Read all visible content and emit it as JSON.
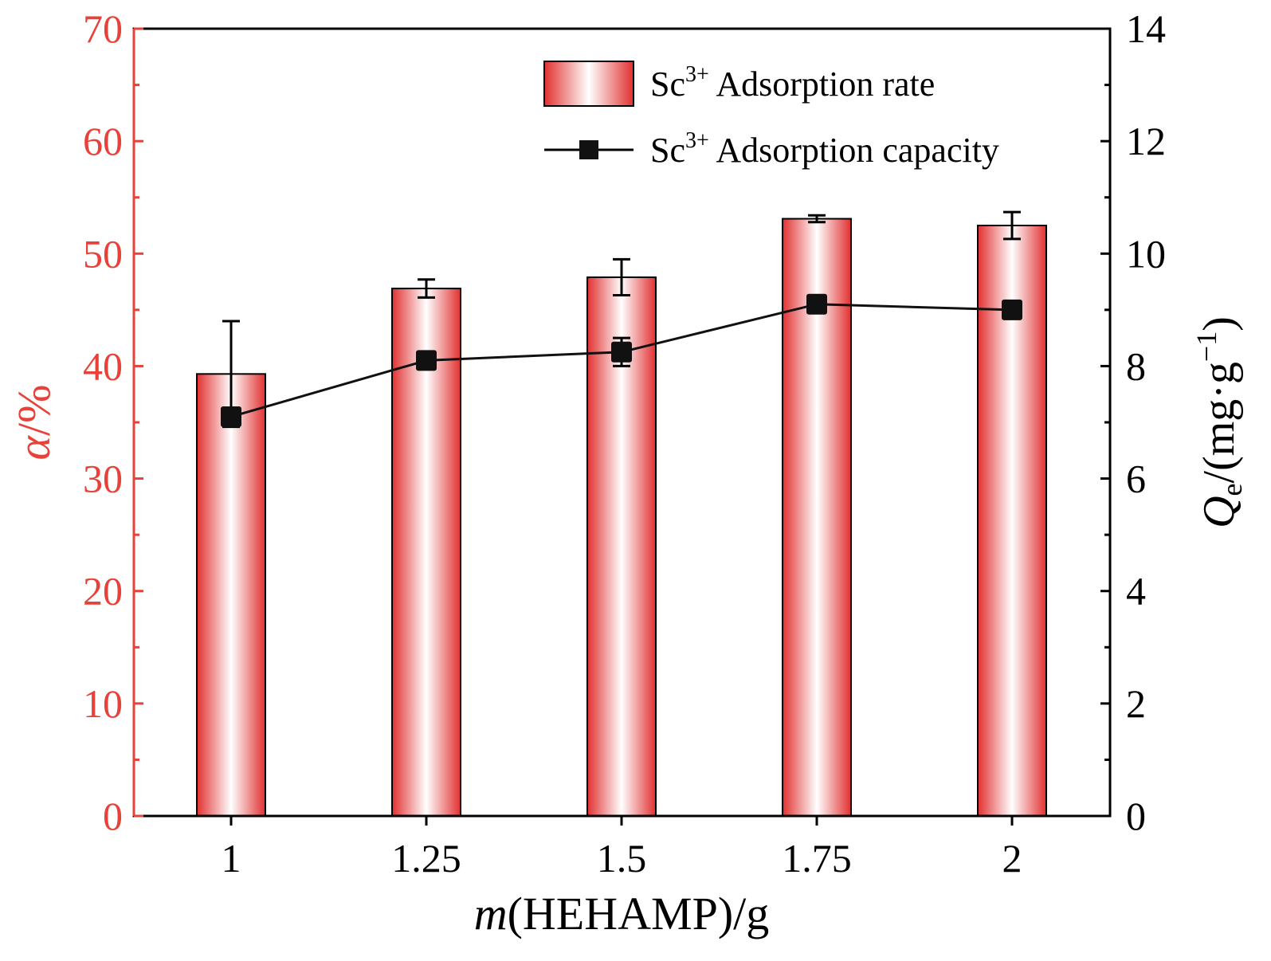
{
  "chart_data": {
    "type": "bar",
    "categories": [
      "1",
      "1.25",
      "1.5",
      "1.75",
      "2"
    ],
    "x_axis": {
      "label_prefix": "m",
      "label_suffix": "(HEHAMP)/g"
    },
    "y_left": {
      "symbol": "α",
      "unit": "/%",
      "range": [
        0,
        70
      ],
      "ticks": [
        "0",
        "10",
        "20",
        "30",
        "40",
        "50",
        "60",
        "70"
      ],
      "color": "#e8413a"
    },
    "y_right": {
      "symbol": "Q",
      "subscript": "e",
      "unit_main": "/(mg·g",
      "unit_sup": "−1",
      "unit_close": ")",
      "range": [
        0,
        14
      ],
      "ticks": [
        "0",
        "2",
        "4",
        "6",
        "8",
        "10",
        "12",
        "14"
      ]
    },
    "series": [
      {
        "name_base": "Sc",
        "name_sup": "3+",
        "name_rest": " Adsorption rate",
        "kind": "bar",
        "axis": "left",
        "color": "#e8413a",
        "values": [
          39.3,
          46.9,
          47.9,
          53.1,
          52.5
        ],
        "errors": [
          4.7,
          0.8,
          1.6,
          0.3,
          1.2
        ]
      },
      {
        "name_base": "Sc",
        "name_sup": "3+",
        "name_rest": " Adsorption capacity",
        "kind": "line",
        "axis": "right",
        "color": "#111111",
        "values": [
          7.1,
          8.1,
          8.25,
          9.1,
          9.0
        ],
        "errors": [
          0.0,
          0.0,
          0.25,
          0.0,
          0.0
        ]
      }
    ]
  }
}
